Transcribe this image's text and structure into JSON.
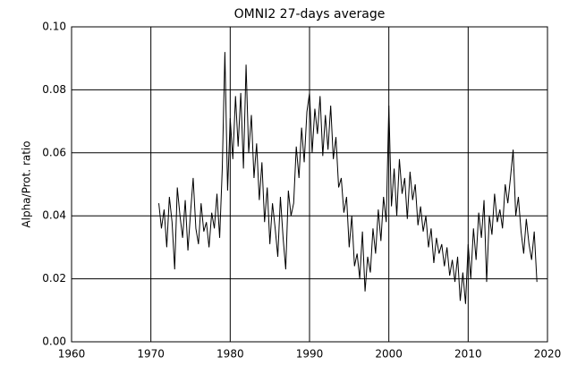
{
  "chart_data": {
    "type": "line",
    "title": "OMNI2 27-days average",
    "y_label": "Alpha/Prot. ratio",
    "color": "#000000",
    "grid": true,
    "xlim": [
      1960,
      2020
    ],
    "xticks": [
      1960,
      1970,
      1980,
      1990,
      2000,
      2010,
      2020
    ],
    "ylim": [
      0,
      0.1
    ],
    "yticks": [
      {
        "value": 0,
        "label": "0.00"
      },
      {
        "value": 0.02,
        "label": "0.02"
      },
      {
        "value": 0.04,
        "label": "0.04"
      },
      {
        "value": 0.06,
        "label": "0.06"
      },
      {
        "value": 0.08,
        "label": "0.08"
      },
      {
        "value": 0.1,
        "label": "0.10"
      }
    ],
    "x": [
      1971.0,
      1971.33,
      1971.67,
      1972.0,
      1972.33,
      1972.67,
      1973.0,
      1973.33,
      1973.67,
      1974.0,
      1974.33,
      1974.67,
      1975.0,
      1975.33,
      1975.67,
      1976.0,
      1976.33,
      1976.67,
      1977.0,
      1977.33,
      1977.67,
      1978.0,
      1978.33,
      1978.67,
      1979.0,
      1979.33,
      1979.67,
      1980.0,
      1980.33,
      1980.67,
      1981.0,
      1981.33,
      1981.67,
      1982.0,
      1982.33,
      1982.67,
      1983.0,
      1983.33,
      1983.67,
      1984.0,
      1984.33,
      1984.67,
      1985.0,
      1985.33,
      1985.67,
      1986.0,
      1986.33,
      1986.67,
      1987.0,
      1987.33,
      1987.67,
      1988.0,
      1988.33,
      1988.67,
      1989.0,
      1989.33,
      1989.67,
      1990.0,
      1990.33,
      1990.67,
      1991.0,
      1991.33,
      1991.67,
      1992.0,
      1992.33,
      1992.67,
      1993.0,
      1993.33,
      1993.67,
      1994.0,
      1994.33,
      1994.67,
      1995.0,
      1995.33,
      1995.67,
      1996.0,
      1996.33,
      1996.67,
      1997.0,
      1997.33,
      1997.67,
      1998.0,
      1998.33,
      1998.67,
      1999.0,
      1999.33,
      1999.67,
      2000.0,
      2000.33,
      2000.67,
      2001.0,
      2001.33,
      2001.67,
      2002.0,
      2002.33,
      2002.67,
      2003.0,
      2003.33,
      2003.67,
      2004.0,
      2004.33,
      2004.67,
      2005.0,
      2005.33,
      2005.67,
      2006.0,
      2006.33,
      2006.67,
      2007.0,
      2007.33,
      2007.67,
      2008.0,
      2008.33,
      2008.67,
      2009.0,
      2009.33,
      2009.67,
      2010.0,
      2010.33,
      2010.67,
      2011.0,
      2011.33,
      2011.67,
      2012.0,
      2012.33,
      2012.67,
      2013.0,
      2013.33,
      2013.67,
      2014.0,
      2014.33,
      2014.67,
      2015.0,
      2015.33,
      2015.67,
      2016.0,
      2016.33,
      2016.67,
      2017.0,
      2017.33,
      2017.67,
      2018.0,
      2018.33,
      2018.67
    ],
    "values": [
      0.044,
      0.036,
      0.042,
      0.03,
      0.046,
      0.038,
      0.023,
      0.049,
      0.04,
      0.033,
      0.045,
      0.029,
      0.041,
      0.052,
      0.036,
      0.031,
      0.044,
      0.035,
      0.038,
      0.03,
      0.041,
      0.036,
      0.047,
      0.033,
      0.055,
      0.092,
      0.048,
      0.071,
      0.058,
      0.078,
      0.062,
      0.079,
      0.055,
      0.088,
      0.06,
      0.072,
      0.052,
      0.063,
      0.045,
      0.057,
      0.038,
      0.049,
      0.031,
      0.044,
      0.036,
      0.027,
      0.046,
      0.033,
      0.023,
      0.048,
      0.04,
      0.044,
      0.062,
      0.052,
      0.068,
      0.057,
      0.073,
      0.079,
      0.06,
      0.074,
      0.066,
      0.078,
      0.059,
      0.072,
      0.061,
      0.075,
      0.058,
      0.065,
      0.049,
      0.052,
      0.041,
      0.046,
      0.03,
      0.04,
      0.024,
      0.028,
      0.02,
      0.035,
      0.016,
      0.027,
      0.022,
      0.036,
      0.028,
      0.042,
      0.032,
      0.046,
      0.038,
      0.075,
      0.043,
      0.055,
      0.04,
      0.058,
      0.047,
      0.052,
      0.039,
      0.054,
      0.045,
      0.05,
      0.037,
      0.043,
      0.035,
      0.04,
      0.03,
      0.036,
      0.025,
      0.033,
      0.028,
      0.031,
      0.024,
      0.03,
      0.021,
      0.026,
      0.019,
      0.027,
      0.013,
      0.022,
      0.012,
      0.031,
      0.02,
      0.036,
      0.026,
      0.041,
      0.033,
      0.045,
      0.019,
      0.04,
      0.034,
      0.047,
      0.038,
      0.042,
      0.036,
      0.05,
      0.044,
      0.052,
      0.061,
      0.04,
      0.046,
      0.035,
      0.028,
      0.039,
      0.031,
      0.026,
      0.035,
      0.019
    ]
  }
}
